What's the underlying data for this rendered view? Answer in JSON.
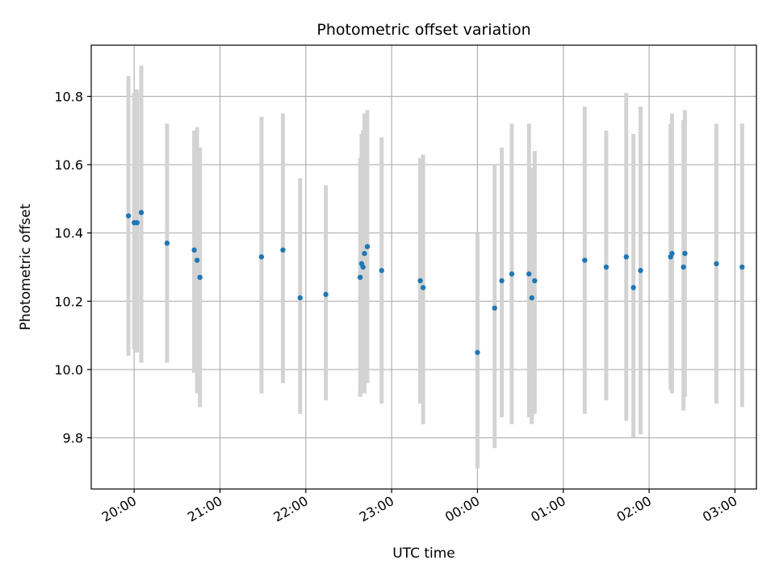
{
  "chart_data": {
    "type": "scatter",
    "title": "Photometric offset variation",
    "xlabel": "UTC time",
    "ylabel": "Photometric offset",
    "x_axis_type": "time",
    "xlim": [
      "19:30",
      "03:15"
    ],
    "ylim": [
      9.65,
      10.95
    ],
    "xticks": [
      "20:00",
      "21:00",
      "22:00",
      "23:00",
      "00:00",
      "01:00",
      "02:00",
      "03:00"
    ],
    "yticks": [
      9.8,
      10.0,
      10.2,
      10.4,
      10.6,
      10.8
    ],
    "grid": true,
    "marker_color": "#1f77b4",
    "errorbar_color": "#d3d3d3",
    "series": [
      {
        "points": [
          {
            "x": "19:56",
            "y": 10.45,
            "ylo": 10.04,
            "yhi": 10.86
          },
          {
            "x": "20:00",
            "y": 10.43,
            "ylo": 10.06,
            "yhi": 10.81
          },
          {
            "x": "20:02",
            "y": 10.43,
            "ylo": 10.05,
            "yhi": 10.82
          },
          {
            "x": "20:05",
            "y": 10.46,
            "ylo": 10.02,
            "yhi": 10.89
          },
          {
            "x": "20:23",
            "y": 10.37,
            "ylo": 10.02,
            "yhi": 10.72
          },
          {
            "x": "20:42",
            "y": 10.35,
            "ylo": 9.99,
            "yhi": 10.7
          },
          {
            "x": "20:44",
            "y": 10.32,
            "ylo": 9.93,
            "yhi": 10.71
          },
          {
            "x": "20:46",
            "y": 10.27,
            "ylo": 9.89,
            "yhi": 10.65
          },
          {
            "x": "21:29",
            "y": 10.33,
            "ylo": 9.93,
            "yhi": 10.74
          },
          {
            "x": "21:44",
            "y": 10.35,
            "ylo": 9.96,
            "yhi": 10.75
          },
          {
            "x": "21:56",
            "y": 10.21,
            "ylo": 9.87,
            "yhi": 10.56
          },
          {
            "x": "22:14",
            "y": 10.22,
            "ylo": 9.91,
            "yhi": 10.54
          },
          {
            "x": "22:38",
            "y": 10.27,
            "ylo": 9.92,
            "yhi": 10.62
          },
          {
            "x": "22:39",
            "y": 10.31,
            "ylo": 9.93,
            "yhi": 10.69
          },
          {
            "x": "22:40",
            "y": 10.3,
            "ylo": 9.95,
            "yhi": 10.7
          },
          {
            "x": "22:41",
            "y": 10.34,
            "ylo": 9.93,
            "yhi": 10.75
          },
          {
            "x": "22:43",
            "y": 10.36,
            "ylo": 9.96,
            "yhi": 10.76
          },
          {
            "x": "22:53",
            "y": 10.29,
            "ylo": 9.9,
            "yhi": 10.68
          },
          {
            "x": "23:20",
            "y": 10.26,
            "ylo": 9.9,
            "yhi": 10.62
          },
          {
            "x": "23:22",
            "y": 10.24,
            "ylo": 9.84,
            "yhi": 10.63
          },
          {
            "x": "00:00",
            "y": 10.05,
            "ylo": 9.71,
            "yhi": 10.4
          },
          {
            "x": "00:12",
            "y": 10.18,
            "ylo": 9.77,
            "yhi": 10.6
          },
          {
            "x": "00:17",
            "y": 10.26,
            "ylo": 9.86,
            "yhi": 10.65
          },
          {
            "x": "00:24",
            "y": 10.28,
            "ylo": 9.84,
            "yhi": 10.72
          },
          {
            "x": "00:36",
            "y": 10.28,
            "ylo": 9.86,
            "yhi": 10.72
          },
          {
            "x": "00:38",
            "y": 10.21,
            "ylo": 9.84,
            "yhi": 10.59
          },
          {
            "x": "00:40",
            "y": 10.26,
            "ylo": 9.87,
            "yhi": 10.64
          },
          {
            "x": "01:15",
            "y": 10.32,
            "ylo": 9.87,
            "yhi": 10.77
          },
          {
            "x": "01:30",
            "y": 10.3,
            "ylo": 9.91,
            "yhi": 10.7
          },
          {
            "x": "01:44",
            "y": 10.33,
            "ylo": 9.85,
            "yhi": 10.81
          },
          {
            "x": "01:49",
            "y": 10.24,
            "ylo": 9.8,
            "yhi": 10.69
          },
          {
            "x": "01:54",
            "y": 10.29,
            "ylo": 9.81,
            "yhi": 10.77
          },
          {
            "x": "02:15",
            "y": 10.33,
            "ylo": 9.94,
            "yhi": 10.72
          },
          {
            "x": "02:16",
            "y": 10.34,
            "ylo": 9.93,
            "yhi": 10.75
          },
          {
            "x": "02:24",
            "y": 10.3,
            "ylo": 9.88,
            "yhi": 10.73
          },
          {
            "x": "02:25",
            "y": 10.34,
            "ylo": 9.92,
            "yhi": 10.76
          },
          {
            "x": "02:47",
            "y": 10.31,
            "ylo": 9.9,
            "yhi": 10.72
          },
          {
            "x": "03:05",
            "y": 10.3,
            "ylo": 9.89,
            "yhi": 10.72
          }
        ]
      }
    ]
  }
}
